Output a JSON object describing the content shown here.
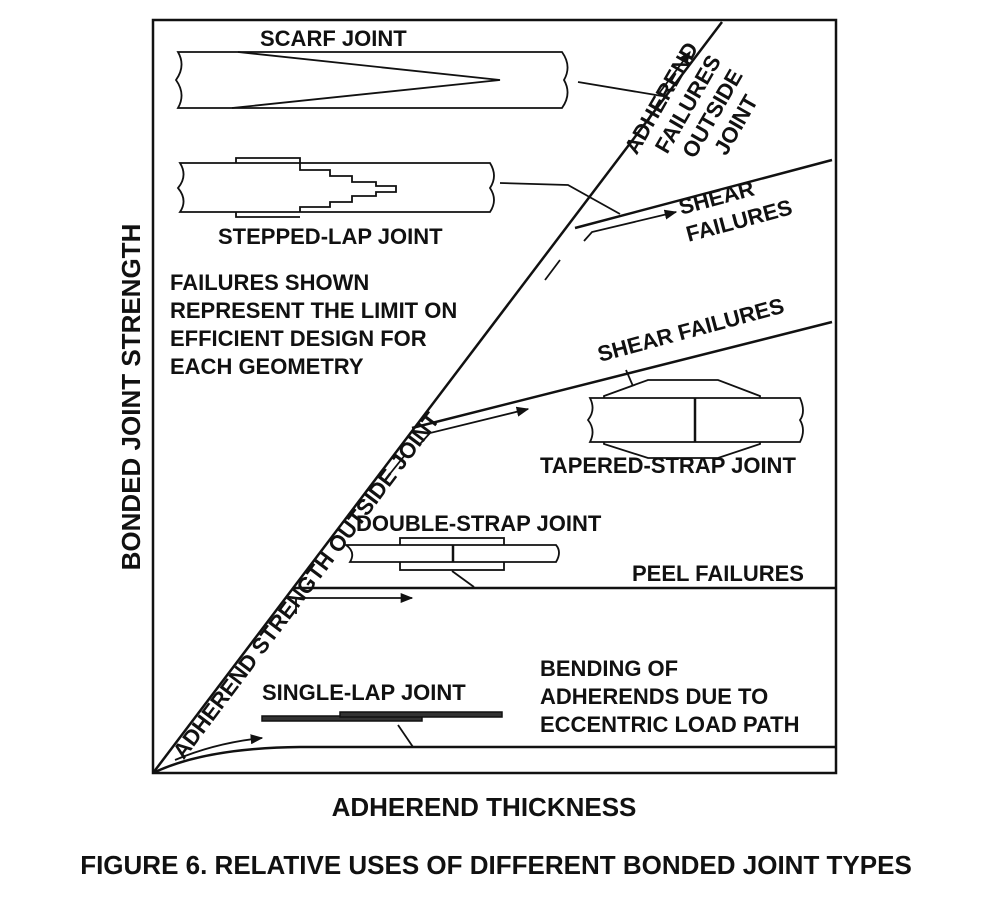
{
  "labels": {
    "scarf": "SCARF JOINT",
    "stepped": "STEPPED-LAP JOINT",
    "note_lines": [
      "FAILURES SHOWN",
      "REPRESENT THE LIMIT ON",
      "EFFICIENT DESIGN FOR",
      "EACH GEOMETRY"
    ],
    "adherend_failures": [
      "ADHEREND",
      "FAILURES",
      "OUTSIDE",
      "JOINT"
    ],
    "shear_failures_upper": [
      "SHEAR",
      "FAILURES"
    ],
    "shear_failures_mid": "SHEAR FAILURES",
    "tapered_strap": "TAPERED-STRAP JOINT",
    "double_strap": "DOUBLE-STRAP JOINT",
    "peel_failures": "PEEL FAILURES",
    "bending": [
      "BENDING OF",
      "ADHERENDS DUE TO",
      "ECCENTRIC LOAD PATH"
    ],
    "single_lap": "SINGLE-LAP JOINT",
    "diagonal": "ADHEREND STRENGTH OUTSIDE JOINT"
  },
  "axes": {
    "x_label": "ADHEREND THICKNESS",
    "y_label": "BONDED JOINT STRENGTH"
  },
  "caption": "FIGURE 6.  RELATIVE USES OF DIFFERENT BONDED JOINT TYPES"
}
